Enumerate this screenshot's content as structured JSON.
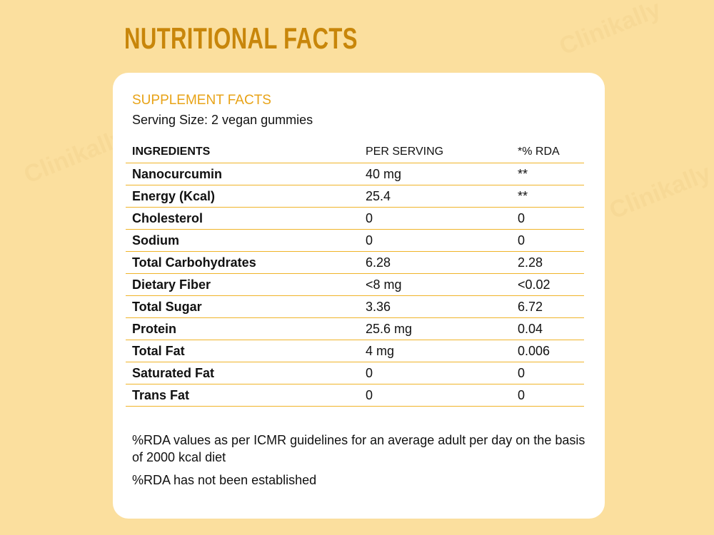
{
  "watermark": "Clinikally",
  "title": "NUTRITIONAL FACTS",
  "card": {
    "heading": "SUPPLEMENT FACTS",
    "serving_size": "Serving Size: 2 vegan gummies",
    "table": {
      "headers": [
        "INGREDIENTS",
        "PER SERVING",
        "*% RDA"
      ],
      "rows": [
        [
          "Nanocurcumin",
          "40 mg",
          "**"
        ],
        [
          "Energy (Kcal)",
          "25.4",
          "**"
        ],
        [
          "Cholesterol",
          "0",
          "0"
        ],
        [
          "Sodium",
          "0",
          "0"
        ],
        [
          "Total Carbohydrates",
          "6.28",
          "2.28"
        ],
        [
          "Dietary Fiber",
          "<8 mg",
          "<0.02"
        ],
        [
          "Total Sugar",
          "3.36",
          "6.72"
        ],
        [
          "Protein",
          "25.6 mg",
          "0.04"
        ],
        [
          "Total Fat",
          "4 mg",
          "0.006"
        ],
        [
          "Saturated Fat",
          "0",
          "0"
        ],
        [
          "Trans Fat",
          "0",
          "0"
        ]
      ]
    },
    "notes": [
      "%RDA values as per ICMR guidelines for an average adult per day on the basis of 2000 kcal diet",
      "%RDA has not been established"
    ]
  },
  "colors": {
    "background": "#fbdf9e",
    "title": "#c8860a",
    "accent": "#e8a317",
    "rule": "#f0b429"
  }
}
